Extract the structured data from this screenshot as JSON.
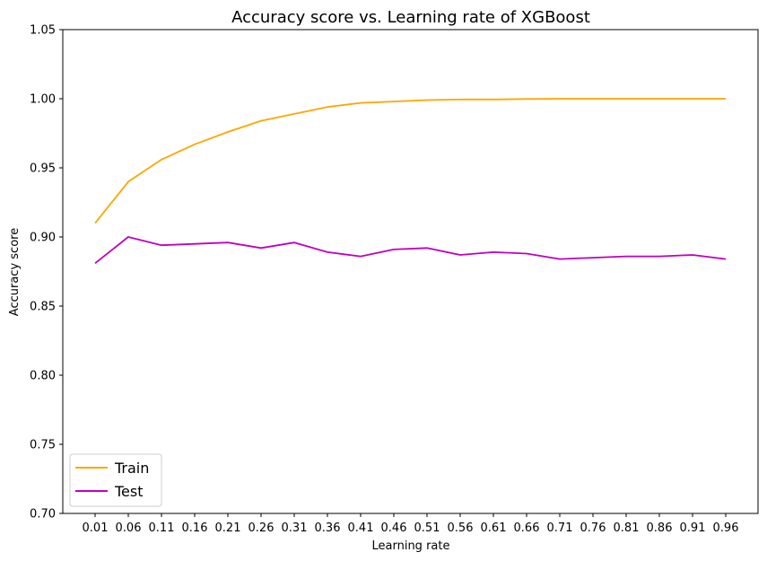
{
  "chart_data": {
    "type": "line",
    "title": "Accuracy score vs. Learning rate of XGBoost",
    "xlabel": "Learning rate",
    "ylabel": "Accuracy score",
    "x": [
      0.01,
      0.06,
      0.11,
      0.16,
      0.21,
      0.26,
      0.31,
      0.36,
      0.41,
      0.46,
      0.51,
      0.56,
      0.61,
      0.66,
      0.71,
      0.76,
      0.81,
      0.86,
      0.91,
      0.96
    ],
    "x_tick_labels": [
      "0.01",
      "0.06",
      "0.11",
      "0.16",
      "0.21",
      "0.26",
      "0.31",
      "0.36",
      "0.41",
      "0.46",
      "0.51",
      "0.56",
      "0.61",
      "0.66",
      "0.71",
      "0.76",
      "0.81",
      "0.86",
      "0.91",
      "0.96"
    ],
    "ylim": [
      0.7,
      1.05
    ],
    "y_ticks": [
      0.7,
      0.75,
      0.8,
      0.85,
      0.9,
      0.95,
      1.0,
      1.05
    ],
    "y_tick_labels": [
      "0.70",
      "0.75",
      "0.80",
      "0.85",
      "0.90",
      "0.95",
      "1.00",
      "1.05"
    ],
    "grid": false,
    "legend_position": "lower-left",
    "series": [
      {
        "name": "Train",
        "color": "#ffa500",
        "values": [
          0.91,
          0.94,
          0.956,
          0.967,
          0.976,
          0.984,
          0.989,
          0.994,
          0.997,
          0.998,
          0.999,
          0.9995,
          0.9995,
          0.9998,
          1.0,
          1.0,
          1.0,
          1.0,
          1.0,
          1.0
        ]
      },
      {
        "name": "Test",
        "color": "#bf00bf",
        "values": [
          0.881,
          0.9,
          0.894,
          0.895,
          0.896,
          0.892,
          0.896,
          0.889,
          0.886,
          0.891,
          0.892,
          0.887,
          0.889,
          0.888,
          0.884,
          0.885,
          0.886,
          0.886,
          0.887,
          0.884
        ]
      }
    ]
  }
}
